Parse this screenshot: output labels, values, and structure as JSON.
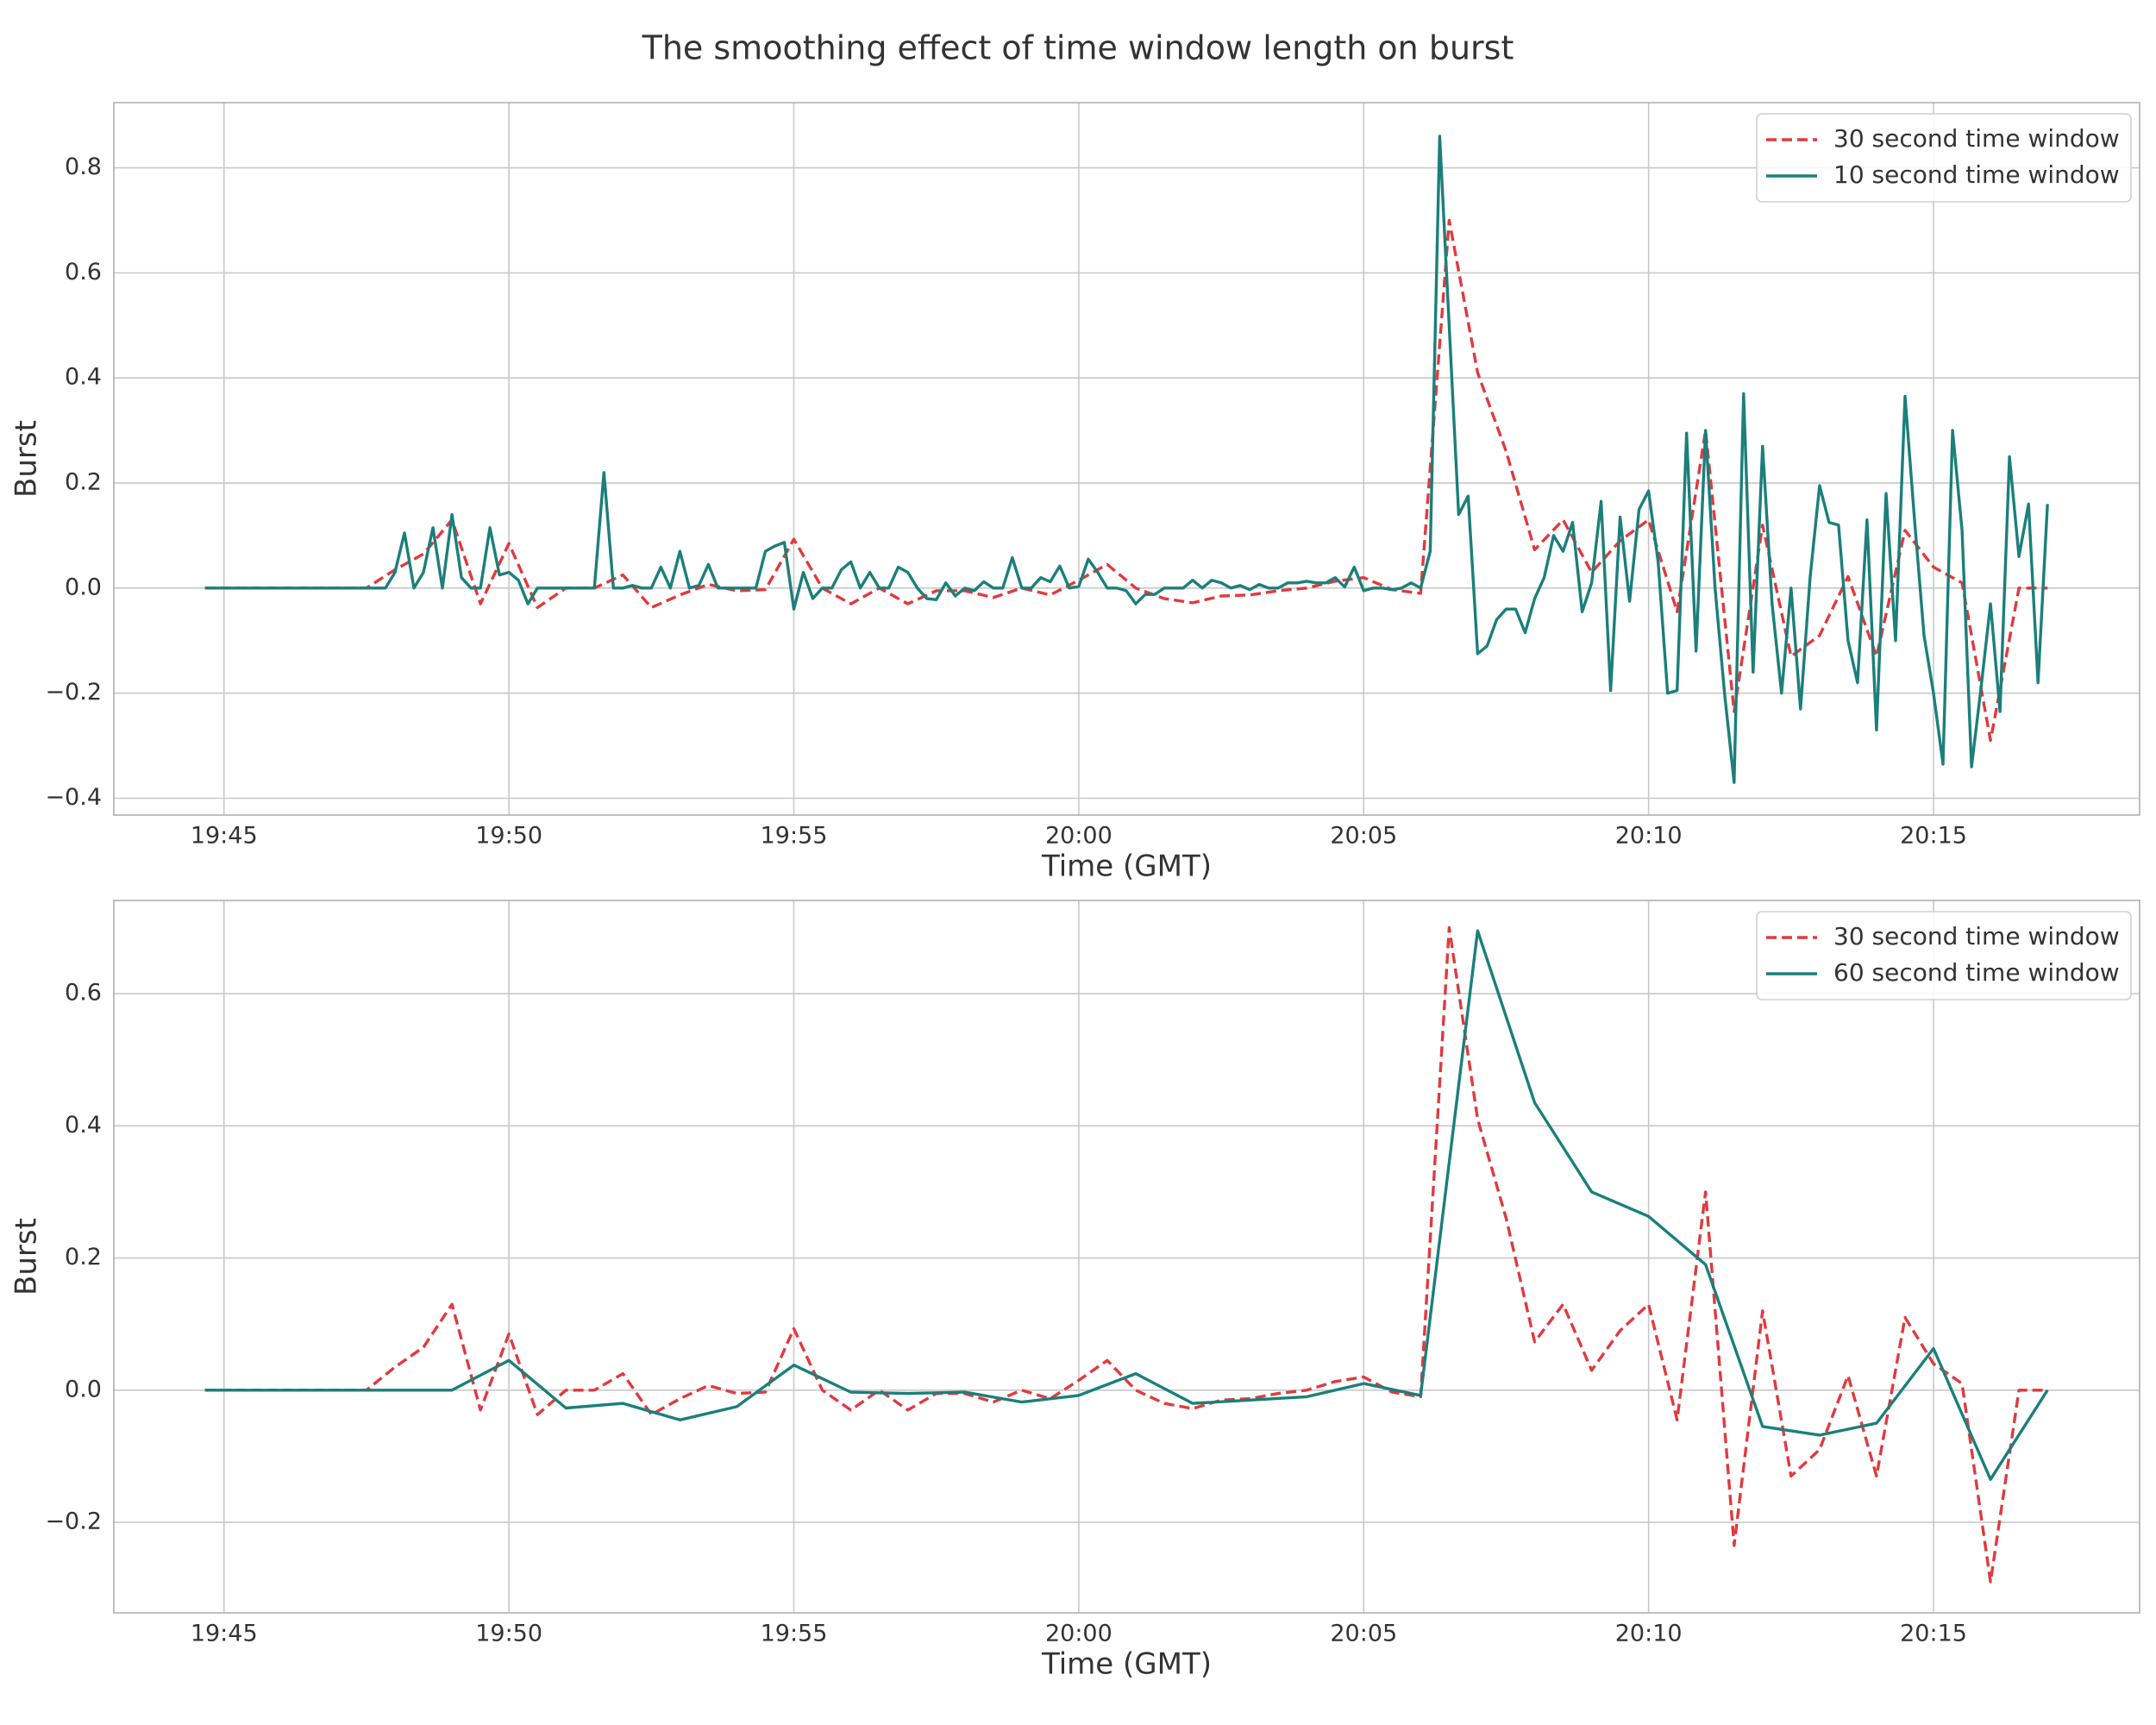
{
  "title": "The smoothing effect of time window length on burst",
  "chart_data": [
    {
      "type": "line",
      "xlabel": "Time (GMT)",
      "ylabel": "Burst",
      "xlim": [
        "19:43:04",
        "20:18:37"
      ],
      "xticks": [
        "19:45",
        "19:50",
        "19:55",
        "20:00",
        "20:05",
        "20:10",
        "20:15"
      ],
      "ylim": [
        -0.432,
        0.924
      ],
      "yticks": [
        {
          "value": -0.4,
          "label": "−0.4"
        },
        {
          "value": -0.2,
          "label": "−0.2"
        },
        {
          "value": 0,
          "label": "0.0"
        },
        {
          "value": 0.2,
          "label": "0.2"
        },
        {
          "value": 0.4,
          "label": "0.4"
        },
        {
          "value": 0.6,
          "label": "0.6"
        },
        {
          "value": 0.8,
          "label": "0.8"
        }
      ],
      "grid": true,
      "legend": "upper right",
      "series": [
        {
          "name": "30 second time window",
          "color": "#e03a3e",
          "style": "dashed",
          "x": [
            "19:44:40",
            "19:45:00",
            "19:45:30",
            "19:46:00",
            "19:46:30",
            "19:47:00",
            "19:47:30",
            "19:48:00",
            "19:48:30",
            "19:49:00",
            "19:49:30",
            "19:50:00",
            "19:50:30",
            "19:51:00",
            "19:51:30",
            "19:52:00",
            "19:52:30",
            "19:53:00",
            "19:53:30",
            "19:54:00",
            "19:54:30",
            "19:55:00",
            "19:55:30",
            "19:56:00",
            "19:56:30",
            "19:57:00",
            "19:57:30",
            "19:58:00",
            "19:58:30",
            "19:59:00",
            "19:59:30",
            "20:00:00",
            "20:00:30",
            "20:01:00",
            "20:01:30",
            "20:02:00",
            "20:02:30",
            "20:03:00",
            "20:03:30",
            "20:04:00",
            "20:04:30",
            "20:05:00",
            "20:05:30",
            "20:06:00",
            "20:06:30",
            "20:07:00",
            "20:07:30",
            "20:08:00",
            "20:08:30",
            "20:09:00",
            "20:09:30",
            "20:10:00",
            "20:10:30",
            "20:11:00",
            "20:11:30",
            "20:12:00",
            "20:12:30",
            "20:13:00",
            "20:13:30",
            "20:14:00",
            "20:14:30",
            "20:15:00",
            "20:15:30",
            "20:16:00",
            "20:16:30",
            "20:17:00"
          ],
          "values": [
            0,
            0,
            0,
            0,
            0,
            0,
            0,
            0.035,
            0.065,
            0.13,
            -0.03,
            0.085,
            -0.037,
            0,
            0,
            0.025,
            -0.037,
            -0.013,
            0.007,
            -0.005,
            -0.003,
            0.093,
            0,
            -0.03,
            0,
            -0.03,
            -0.005,
            -0.005,
            -0.018,
            0,
            -0.013,
            0.015,
            0.045,
            0,
            -0.02,
            -0.028,
            -0.015,
            -0.013,
            -0.005,
            0,
            0.013,
            0.02,
            -0.003,
            -0.01,
            0.7,
            0.41,
            0.26,
            0.073,
            0.13,
            0.03,
            0.09,
            0.13,
            -0.045,
            0.3,
            -0.235,
            0.12,
            -0.13,
            -0.09,
            0.022,
            -0.13,
            0.11,
            0.04,
            0.01,
            -0.29,
            0,
            0
          ]
        },
        {
          "name": "10 second time window",
          "color": "#1b7f7a",
          "style": "solid",
          "x": [
            "19:44:40",
            "19:44:50",
            "19:45:00",
            "19:45:10",
            "19:45:20",
            "19:45:30",
            "19:45:40",
            "19:45:50",
            "19:46:00",
            "19:46:10",
            "19:46:20",
            "19:46:30",
            "19:46:40",
            "19:46:50",
            "19:47:00",
            "19:47:10",
            "19:47:20",
            "19:47:30",
            "19:47:40",
            "19:47:50",
            "19:48:00",
            "19:48:10",
            "19:48:20",
            "19:48:30",
            "19:48:40",
            "19:48:50",
            "19:49:00",
            "19:49:10",
            "19:49:20",
            "19:49:30",
            "19:49:40",
            "19:49:50",
            "19:50:00",
            "19:50:10",
            "19:50:20",
            "19:50:30",
            "19:50:40",
            "19:50:50",
            "19:51:00",
            "19:51:10",
            "19:51:20",
            "19:51:30",
            "19:51:40",
            "19:51:50",
            "19:52:00",
            "19:52:10",
            "19:52:20",
            "19:52:30",
            "19:52:40",
            "19:52:50",
            "19:53:00",
            "19:53:10",
            "19:53:20",
            "19:53:30",
            "19:53:40",
            "19:53:50",
            "19:54:00",
            "19:54:10",
            "19:54:20",
            "19:54:30",
            "19:54:40",
            "19:54:50",
            "19:55:00",
            "19:55:10",
            "19:55:20",
            "19:55:30",
            "19:55:40",
            "19:55:50",
            "19:56:00",
            "19:56:10",
            "19:56:20",
            "19:56:30",
            "19:56:40",
            "19:56:50",
            "19:57:00",
            "19:57:10",
            "19:57:20",
            "19:57:30",
            "19:57:40",
            "19:57:50",
            "19:58:00",
            "19:58:10",
            "19:58:20",
            "19:58:30",
            "19:58:40",
            "19:58:50",
            "19:59:00",
            "19:59:10",
            "19:59:20",
            "19:59:30",
            "19:59:40",
            "19:59:50",
            "20:00:00",
            "20:00:10",
            "20:00:20",
            "20:00:30",
            "20:00:40",
            "20:00:50",
            "20:01:00",
            "20:01:10",
            "20:01:20",
            "20:01:30",
            "20:01:40",
            "20:01:50",
            "20:02:00",
            "20:02:10",
            "20:02:20",
            "20:02:30",
            "20:02:40",
            "20:02:50",
            "20:03:00",
            "20:03:10",
            "20:03:20",
            "20:03:30",
            "20:03:40",
            "20:03:50",
            "20:04:00",
            "20:04:10",
            "20:04:20",
            "20:04:30",
            "20:04:40",
            "20:04:50",
            "20:05:00",
            "20:05:10",
            "20:05:20",
            "20:05:30",
            "20:05:40",
            "20:05:50",
            "20:06:00",
            "20:06:10",
            "20:06:20",
            "20:06:30",
            "20:06:40",
            "20:06:50",
            "20:07:00",
            "20:07:10",
            "20:07:20",
            "20:07:30",
            "20:07:40",
            "20:07:50",
            "20:08:00",
            "20:08:10",
            "20:08:20",
            "20:08:30",
            "20:08:40",
            "20:08:50",
            "20:09:00",
            "20:09:10",
            "20:09:20",
            "20:09:30",
            "20:09:40",
            "20:09:50",
            "20:10:00",
            "20:10:10",
            "20:10:20",
            "20:10:30",
            "20:10:40",
            "20:10:50",
            "20:11:00",
            "20:11:10",
            "20:11:20",
            "20:11:30",
            "20:11:40",
            "20:11:50",
            "20:12:00",
            "20:12:10",
            "20:12:20",
            "20:12:30",
            "20:12:40",
            "20:12:50",
            "20:13:00",
            "20:13:10",
            "20:13:20",
            "20:13:30",
            "20:13:40",
            "20:13:50",
            "20:14:00",
            "20:14:10",
            "20:14:20",
            "20:14:30",
            "20:14:40",
            "20:14:50",
            "20:15:00",
            "20:15:10",
            "20:15:20",
            "20:15:30",
            "20:15:40",
            "20:15:50",
            "20:16:00",
            "20:16:10",
            "20:16:20",
            "20:16:30",
            "20:16:40",
            "20:16:50",
            "20:17:00"
          ],
          "values": [
            0,
            0,
            0,
            0,
            0,
            0,
            0,
            0,
            0,
            0,
            0,
            0,
            0,
            0,
            0,
            0,
            0,
            0,
            0,
            0,
            0.03,
            0.105,
            0,
            0.03,
            0.115,
            0,
            0.14,
            0.02,
            0,
            0,
            0.115,
            0.025,
            0.03,
            0.015,
            -0.03,
            0,
            0,
            0,
            0,
            0,
            0,
            0,
            0.22,
            0,
            0,
            0.005,
            0,
            0,
            0.04,
            0,
            0.07,
            0,
            0.005,
            0.045,
            0,
            0,
            0,
            0,
            0,
            0.07,
            0.08,
            0.087,
            -0.04,
            0.03,
            -0.02,
            0,
            0,
            0.035,
            0.05,
            0,
            0.03,
            0,
            0,
            0.04,
            0.03,
            0,
            -0.02,
            -0.022,
            0.01,
            -0.015,
            0,
            -0.005,
            0.012,
            0,
            0,
            0.058,
            0,
            0,
            0.02,
            0.012,
            0.042,
            0,
            0.003,
            0.055,
            0.03,
            0,
            0,
            -0.005,
            -0.03,
            -0.012,
            -0.012,
            0,
            0,
            0,
            0.015,
            0,
            0.015,
            0.01,
            0,
            0.005,
            -0.003,
            0.007,
            0,
            0,
            0.01,
            0.01,
            0.013,
            0.01,
            0.01,
            0.02,
            0.002,
            0.04,
            -0.005,
            0,
            0,
            -0.003,
            0,
            0.01,
            0,
            0.07,
            0.86,
            0.5,
            0.14,
            0.175,
            -0.125,
            -0.11,
            -0.06,
            -0.04,
            -0.04,
            -0.085,
            -0.02,
            0.02,
            0.1,
            0.07,
            0.125,
            -0.045,
            0.01,
            0.165,
            -0.195,
            0.135,
            -0.025,
            0.15,
            0.185,
            0.05,
            -0.2,
            -0.195,
            0.295,
            -0.12,
            0.3,
            0,
            -0.2,
            -0.37,
            0.37,
            -0.16,
            0.27,
            -0.03,
            -0.2,
            0,
            -0.23,
            0.02,
            0.195,
            0.125,
            0.12,
            -0.1,
            -0.18,
            0.13,
            -0.27,
            0.18,
            -0.1,
            0.365,
            0.13,
            -0.09,
            -0.2,
            -0.335,
            0.3,
            0.11,
            -0.34,
            -0.19,
            -0.03,
            -0.235,
            0.25,
            0.06,
            0.16,
            -0.18,
            0.16
          ]
        }
      ]
    },
    {
      "type": "line",
      "xlabel": "Time (GMT)",
      "ylabel": "Burst",
      "xlim": [
        "19:43:04",
        "20:18:37"
      ],
      "xticks": [
        "19:45",
        "19:50",
        "19:55",
        "20:00",
        "20:05",
        "20:10",
        "20:15"
      ],
      "ylim": [
        -0.337,
        0.741
      ],
      "yticks": [
        {
          "value": -0.2,
          "label": "−0.2"
        },
        {
          "value": 0,
          "label": "0.0"
        },
        {
          "value": 0.2,
          "label": "0.2"
        },
        {
          "value": 0.4,
          "label": "0.4"
        },
        {
          "value": 0.6,
          "label": "0.6"
        }
      ],
      "grid": true,
      "legend": "upper right",
      "series": [
        {
          "name": "30 second time window",
          "color": "#e03a3e",
          "style": "dashed",
          "x": [
            "19:44:40",
            "19:45:00",
            "19:45:30",
            "19:46:00",
            "19:46:30",
            "19:47:00",
            "19:47:30",
            "19:48:00",
            "19:48:30",
            "19:49:00",
            "19:49:30",
            "19:50:00",
            "19:50:30",
            "19:51:00",
            "19:51:30",
            "19:52:00",
            "19:52:30",
            "19:53:00",
            "19:53:30",
            "19:54:00",
            "19:54:30",
            "19:55:00",
            "19:55:30",
            "19:56:00",
            "19:56:30",
            "19:57:00",
            "19:57:30",
            "19:58:00",
            "19:58:30",
            "19:59:00",
            "19:59:30",
            "20:00:00",
            "20:00:30",
            "20:01:00",
            "20:01:30",
            "20:02:00",
            "20:02:30",
            "20:03:00",
            "20:03:30",
            "20:04:00",
            "20:04:30",
            "20:05:00",
            "20:05:30",
            "20:06:00",
            "20:06:30",
            "20:07:00",
            "20:07:30",
            "20:08:00",
            "20:08:30",
            "20:09:00",
            "20:09:30",
            "20:10:00",
            "20:10:30",
            "20:11:00",
            "20:11:30",
            "20:12:00",
            "20:12:30",
            "20:13:00",
            "20:13:30",
            "20:14:00",
            "20:14:30",
            "20:15:00",
            "20:15:30",
            "20:16:00",
            "20:16:30",
            "20:17:00"
          ],
          "values": [
            0,
            0,
            0,
            0,
            0,
            0,
            0,
            0.035,
            0.065,
            0.13,
            -0.03,
            0.085,
            -0.037,
            0,
            0,
            0.025,
            -0.037,
            -0.013,
            0.007,
            -0.005,
            -0.003,
            0.093,
            0,
            -0.03,
            0,
            -0.03,
            -0.005,
            -0.005,
            -0.018,
            0,
            -0.013,
            0.015,
            0.045,
            0,
            -0.02,
            -0.028,
            -0.015,
            -0.013,
            -0.005,
            0,
            0.013,
            0.02,
            -0.003,
            -0.01,
            0.7,
            0.41,
            0.26,
            0.073,
            0.13,
            0.03,
            0.09,
            0.13,
            -0.045,
            0.3,
            -0.235,
            0.12,
            -0.13,
            -0.09,
            0.022,
            -0.13,
            0.11,
            0.04,
            0.01,
            -0.29,
            0,
            0
          ]
        },
        {
          "name": "60 second time window",
          "color": "#1b7f7a",
          "style": "solid",
          "x": [
            "19:44:40",
            "19:45:00",
            "19:46:00",
            "19:47:00",
            "19:48:00",
            "19:49:00",
            "19:50:00",
            "19:51:00",
            "19:52:00",
            "19:53:00",
            "19:54:00",
            "19:55:00",
            "19:56:00",
            "19:57:00",
            "19:58:00",
            "19:59:00",
            "20:00:00",
            "20:01:00",
            "20:02:00",
            "20:03:00",
            "20:04:00",
            "20:05:00",
            "20:06:00",
            "20:07:00",
            "20:08:00",
            "20:09:00",
            "20:10:00",
            "20:11:00",
            "20:12:00",
            "20:13:00",
            "20:14:00",
            "20:15:00",
            "20:16:00",
            "20:17:00"
          ],
          "values": [
            0,
            0,
            0,
            0,
            0,
            0,
            0.045,
            -0.027,
            -0.02,
            -0.045,
            -0.025,
            0.038,
            -0.003,
            -0.005,
            -0.003,
            -0.018,
            -0.008,
            0.025,
            -0.02,
            -0.015,
            -0.01,
            0.01,
            -0.008,
            0.695,
            0.435,
            0.3,
            0.263,
            0.19,
            -0.055,
            -0.068,
            -0.05,
            0.063,
            -0.135,
            0
          ]
        }
      ]
    }
  ]
}
